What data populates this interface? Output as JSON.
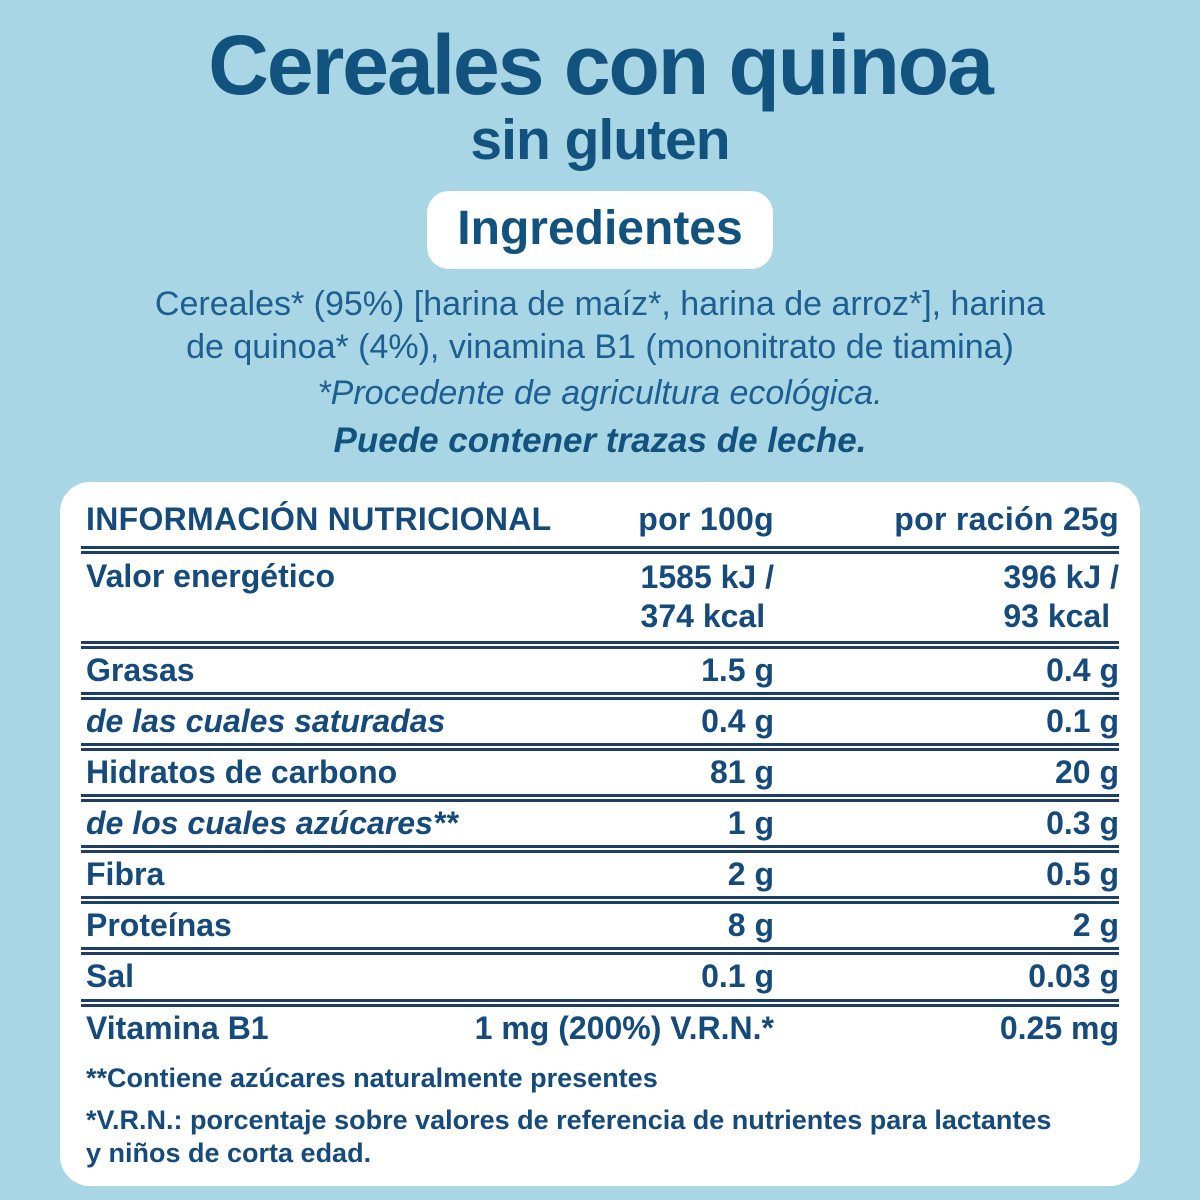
{
  "colors": {
    "background": "#a8d6e4",
    "panel": "#ffffff",
    "heading_text": "#12527e",
    "paragraph_text": "#1d5f92",
    "table_text": "#154a7c",
    "separator": "#1d3f66"
  },
  "header": {
    "title": "Cereales con quinoa",
    "subtitle": "sin gluten",
    "badge_label": "Ingredientes"
  },
  "ingredients": {
    "line1": "Cereales* (95%) [harina de maíz*, harina de arroz*], harina",
    "line2": "de quinoa* (4%), vinamina B1 (mononitrato de tiamina)",
    "organic_note": "*Procedente de agricultura ecológica.",
    "traces_note": "Puede contener trazas de leche."
  },
  "nutrition_table": {
    "header": {
      "col1": "INFORMACIÓN NUTRICIONAL",
      "col2": "por 100g",
      "col3": "por ración 25g"
    },
    "rows": [
      {
        "label": "Valor energético",
        "per100_line1": "1585 kJ /",
        "per100_line2": "374 kcal",
        "per25_line1": "396 kJ /",
        "per25_line2": "93 kcal"
      },
      {
        "label": "Grasas",
        "per100": "1.5 g",
        "per25": "0.4 g"
      },
      {
        "label": "de las cuales saturadas",
        "per100": "0.4 g",
        "per25": "0.1 g"
      },
      {
        "label": "Hidratos de carbono",
        "per100": "81 g",
        "per25": "20 g"
      },
      {
        "label": "de los cuales azúcares**",
        "per100": "1 g",
        "per25": "0.3 g"
      },
      {
        "label": "Fibra",
        "per100": "2 g",
        "per25": "0.5 g"
      },
      {
        "label": "Proteínas",
        "per100": "8 g",
        "per25": "2 g"
      },
      {
        "label": "Sal",
        "per100": "0.1 g",
        "per25": "0.03 g"
      },
      {
        "label": "Vitamina B1",
        "per100": "1 mg (200%) V.R.N.*",
        "per25": "0.25 mg"
      }
    ],
    "footnotes": {
      "sugars": "**Contiene azúcares naturalmente presentes",
      "vrn_line1": "*V.R.N.: porcentaje sobre valores de referencia de nutrientes para lactantes",
      "vrn_line2": "y niños de corta edad."
    }
  }
}
